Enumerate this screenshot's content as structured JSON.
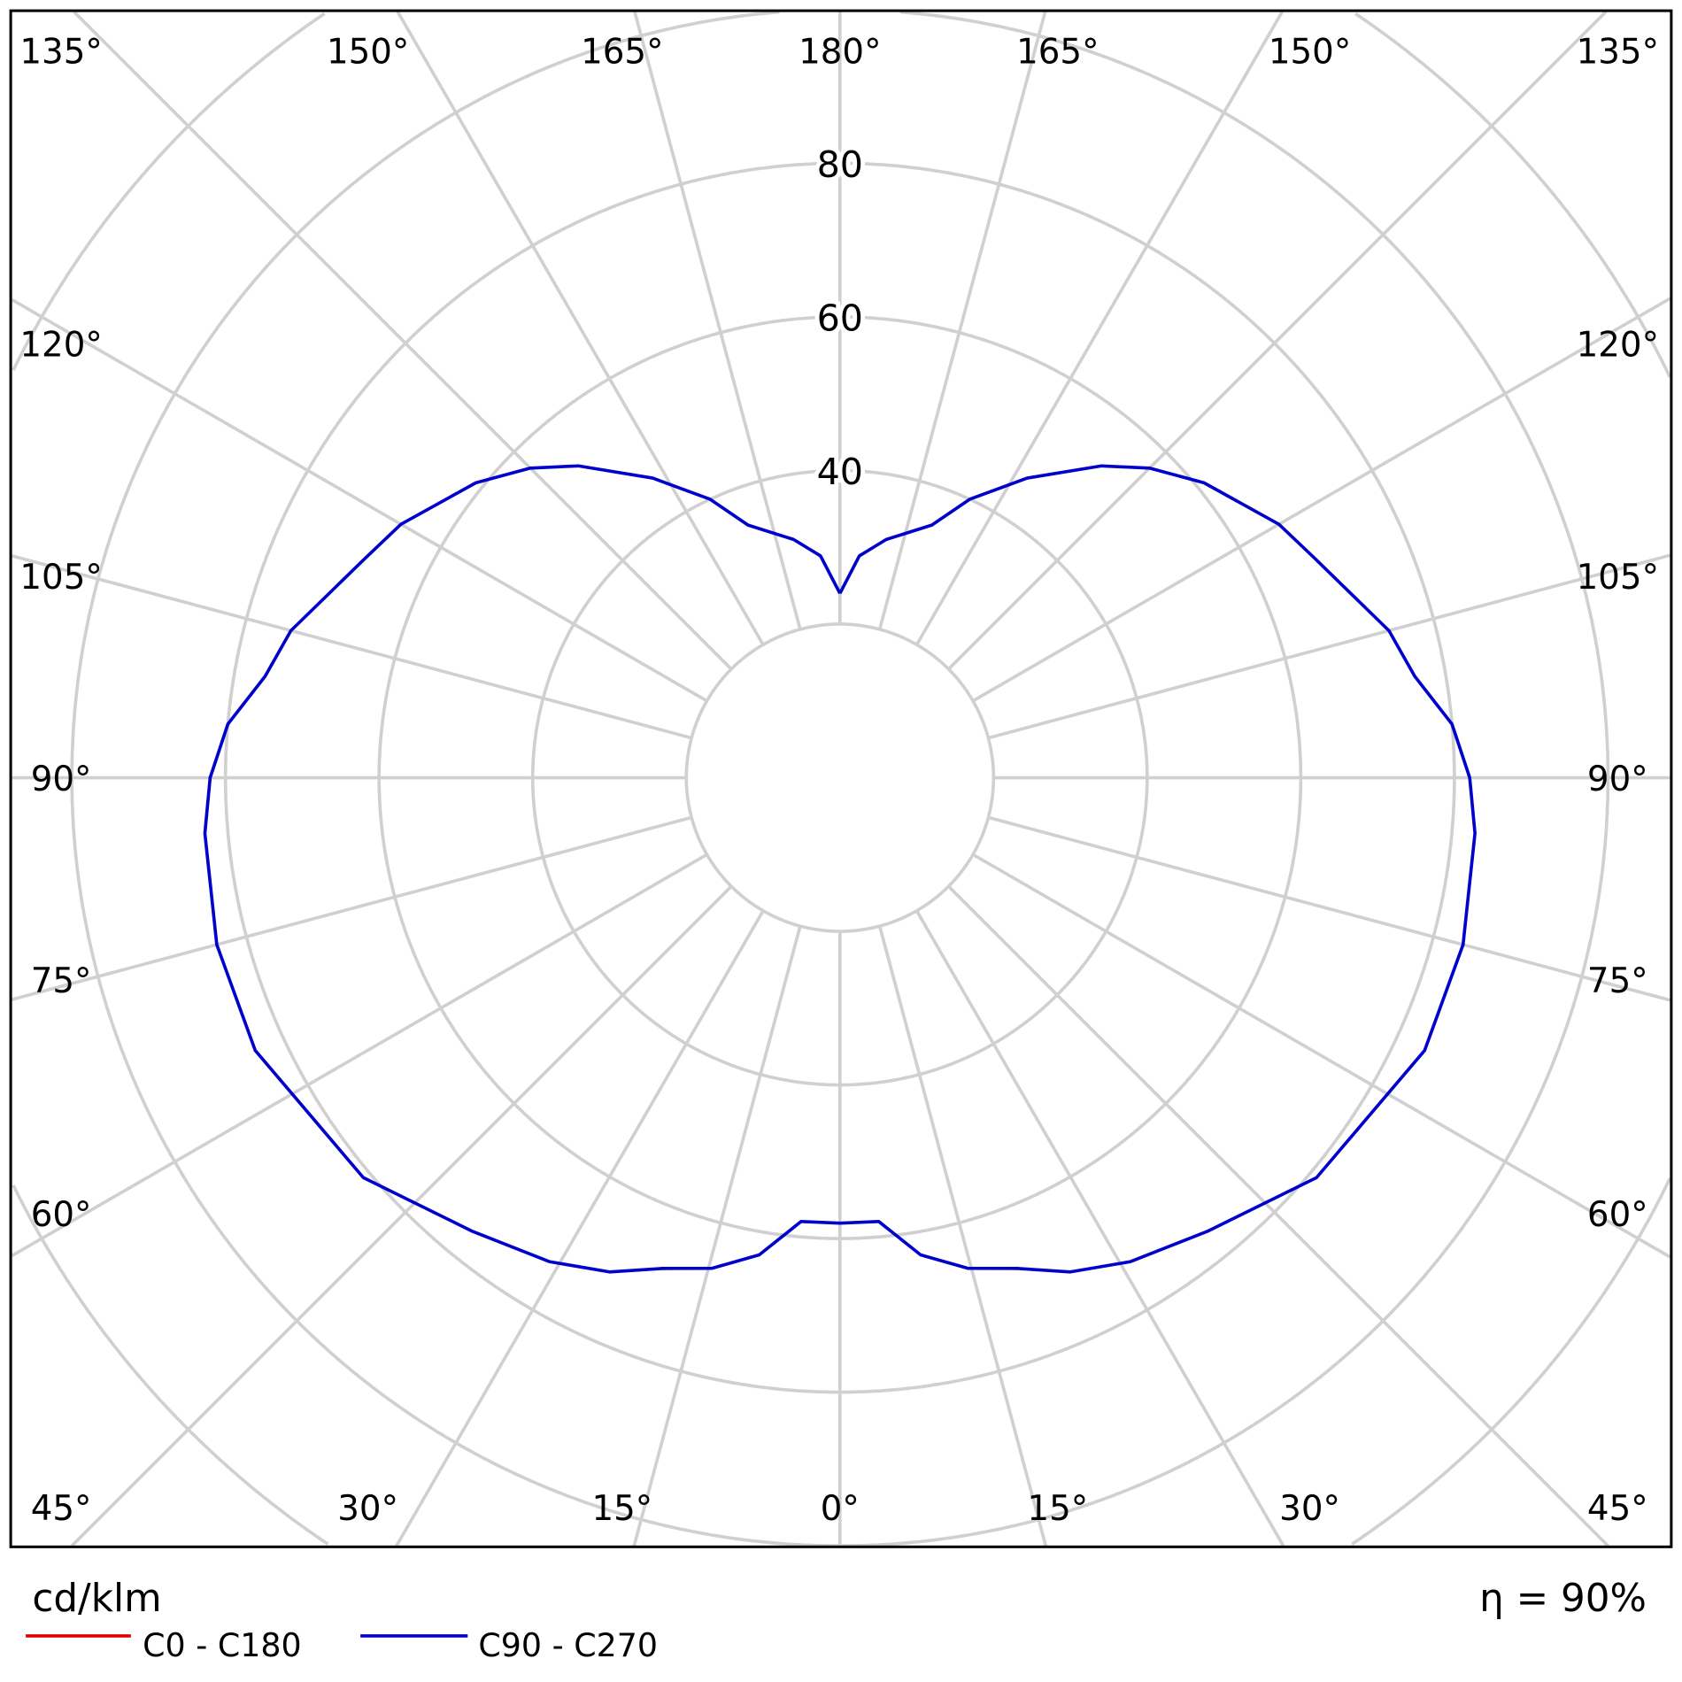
{
  "chart_data": {
    "type": "polar",
    "title": "",
    "unit_label": "cd/klm",
    "efficiency_label": "η = 90%",
    "radial_ticks": [
      20,
      40,
      60,
      80,
      100,
      120
    ],
    "radial_tick_labels": [
      "80",
      "60",
      "40"
    ],
    "radial_range": [
      0,
      100
    ],
    "angle_labels_top": [
      "135°",
      "150°",
      "165°",
      "180°",
      "165°",
      "150°",
      "135°"
    ],
    "angle_labels_left": [
      "120°",
      "105°",
      "90°",
      "75°",
      "60°"
    ],
    "angle_labels_right": [
      "120°",
      "105°",
      "90°",
      "75°",
      "60°"
    ],
    "angle_labels_bottom": [
      "45°",
      "30°",
      "15°",
      "0°",
      "15°",
      "30°",
      "45°"
    ],
    "grid": true,
    "legend": {
      "placement": "bottom-left",
      "items": [
        {
          "name": "C0 - C180",
          "color": "#e00000"
        },
        {
          "name": "C90 - C270",
          "color": "#0000cc"
        }
      ]
    },
    "series": [
      {
        "name": "C90 - C270",
        "color": "#0000cc",
        "symmetric": true,
        "gamma": [
          0,
          5,
          9.6,
          14.6,
          20,
          25,
          31,
          39,
          50,
          65,
          75,
          85,
          90,
          95,
          100,
          105,
          115,
          120,
          129,
          135,
          140,
          148,
          155,
          160,
          169,
          175,
          180
        ],
        "intensity": [
          58,
          58,
          63,
          66,
          68,
          71,
          73.5,
          76,
          81,
          84,
          84,
          83,
          82,
          80,
          76,
          74,
          68,
          66,
          61,
          57,
          53,
          46,
          40,
          35,
          31.6,
          29,
          24
        ]
      }
    ]
  }
}
